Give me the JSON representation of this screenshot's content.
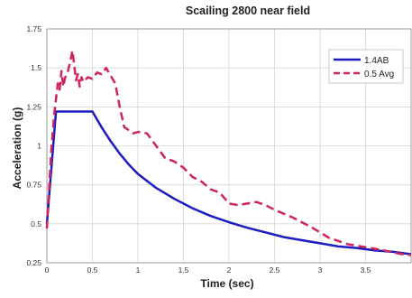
{
  "chart_data": {
    "type": "line",
    "title": "Scailing 2800 near field",
    "xlabel": "Time (sec)",
    "ylabel": "Acceleration (g)",
    "xlim": [
      0,
      4
    ],
    "ylim": [
      0.25,
      1.75
    ],
    "x_ticks": [
      "0",
      "0.5",
      "1",
      "1.5",
      "2",
      "2.5",
      "3",
      "3.5"
    ],
    "y_ticks": [
      "0.25",
      "0.5",
      "0.75",
      "1",
      "1.25",
      "1.5",
      "1.75"
    ],
    "grid": true,
    "legend_position": "top-right",
    "series": [
      {
        "name": "1.4AB",
        "color": "#1c1cc0",
        "style": "solid",
        "points": [
          [
            0,
            0.5
          ],
          [
            0.1,
            1.22
          ],
          [
            0.5,
            1.22
          ],
          [
            0.6,
            1.12
          ],
          [
            0.7,
            1.03
          ],
          [
            0.8,
            0.95
          ],
          [
            0.9,
            0.88
          ],
          [
            1.0,
            0.82
          ],
          [
            1.2,
            0.73
          ],
          [
            1.4,
            0.66
          ],
          [
            1.6,
            0.6
          ],
          [
            1.8,
            0.55
          ],
          [
            2.0,
            0.51
          ],
          [
            2.2,
            0.475
          ],
          [
            2.4,
            0.445
          ],
          [
            2.6,
            0.415
          ],
          [
            2.8,
            0.395
          ],
          [
            3.0,
            0.375
          ],
          [
            3.2,
            0.355
          ],
          [
            3.4,
            0.345
          ],
          [
            3.6,
            0.33
          ],
          [
            3.8,
            0.32
          ],
          [
            4.0,
            0.305
          ]
        ]
      },
      {
        "name": "0.5 Avg",
        "color": "#d0245c",
        "style": "dashed",
        "points": [
          [
            0,
            0.47
          ],
          [
            0.05,
            0.98
          ],
          [
            0.08,
            1.2
          ],
          [
            0.1,
            1.3
          ],
          [
            0.12,
            1.4
          ],
          [
            0.14,
            1.36
          ],
          [
            0.16,
            1.48
          ],
          [
            0.18,
            1.38
          ],
          [
            0.2,
            1.44
          ],
          [
            0.22,
            1.45
          ],
          [
            0.24,
            1.5
          ],
          [
            0.26,
            1.55
          ],
          [
            0.28,
            1.61
          ],
          [
            0.3,
            1.52
          ],
          [
            0.32,
            1.42
          ],
          [
            0.34,
            1.46
          ],
          [
            0.36,
            1.38
          ],
          [
            0.38,
            1.44
          ],
          [
            0.4,
            1.41
          ],
          [
            0.45,
            1.44
          ],
          [
            0.5,
            1.43
          ],
          [
            0.55,
            1.47
          ],
          [
            0.6,
            1.46
          ],
          [
            0.65,
            1.5
          ],
          [
            0.7,
            1.45
          ],
          [
            0.75,
            1.4
          ],
          [
            0.8,
            1.25
          ],
          [
            0.85,
            1.12
          ],
          [
            0.9,
            1.1
          ],
          [
            0.95,
            1.08
          ],
          [
            1.0,
            1.09
          ],
          [
            1.1,
            1.08
          ],
          [
            1.2,
            1.0
          ],
          [
            1.3,
            0.92
          ],
          [
            1.4,
            0.9
          ],
          [
            1.5,
            0.86
          ],
          [
            1.6,
            0.8
          ],
          [
            1.7,
            0.77
          ],
          [
            1.8,
            0.72
          ],
          [
            1.9,
            0.7
          ],
          [
            2.0,
            0.63
          ],
          [
            2.1,
            0.62
          ],
          [
            2.2,
            0.63
          ],
          [
            2.3,
            0.64
          ],
          [
            2.4,
            0.62
          ],
          [
            2.5,
            0.59
          ],
          [
            2.7,
            0.54
          ],
          [
            2.9,
            0.48
          ],
          [
            3.1,
            0.41
          ],
          [
            3.3,
            0.37
          ],
          [
            3.5,
            0.35
          ],
          [
            3.7,
            0.33
          ],
          [
            3.9,
            0.305
          ],
          [
            4.0,
            0.3
          ]
        ]
      }
    ]
  }
}
